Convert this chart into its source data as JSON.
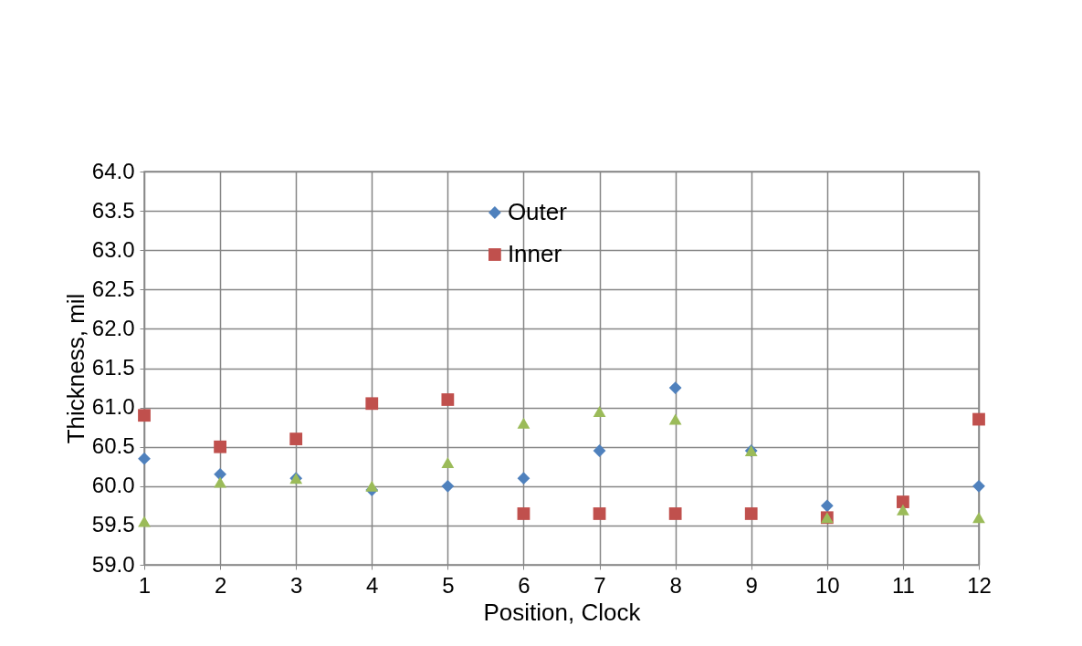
{
  "chart_data": {
    "type": "scatter",
    "xlabel": "Position, Clock",
    "ylabel": "Thickness, mil",
    "x": [
      1,
      2,
      3,
      4,
      5,
      6,
      7,
      8,
      9,
      10,
      11,
      12
    ],
    "series": [
      {
        "name": "Outer",
        "color": "#4f81bd",
        "marker": "diamond",
        "values": [
          60.35,
          60.15,
          60.1,
          59.95,
          60.0,
          60.1,
          60.45,
          61.25,
          60.45,
          59.75,
          null,
          60.0
        ]
      },
      {
        "name": "Inner",
        "color": "#c0504d",
        "marker": "square",
        "values": [
          60.9,
          60.5,
          60.6,
          61.05,
          61.1,
          59.65,
          59.65,
          59.65,
          59.65,
          59.6,
          59.8,
          60.85
        ]
      },
      {
        "color": "#9bbb59",
        "marker": "triangle",
        "values": [
          59.55,
          60.05,
          60.1,
          60.0,
          60.3,
          60.8,
          60.95,
          60.85,
          60.45,
          59.6,
          59.7,
          59.6
        ]
      }
    ],
    "xlim": [
      1,
      12
    ],
    "xticks": [
      1,
      2,
      3,
      4,
      5,
      6,
      7,
      8,
      9,
      10,
      11,
      12
    ],
    "ylim": [
      59.0,
      64.0
    ],
    "yticks": [
      {
        "value": 59,
        "label": "59.0"
      },
      {
        "value": 59.5,
        "label": "59.5"
      },
      {
        "value": 60,
        "label": "60.0"
      },
      {
        "value": 60.5,
        "label": "60.5"
      },
      {
        "value": 61,
        "label": "61.0"
      },
      {
        "value": 61.5,
        "label": "61.5"
      },
      {
        "value": 62,
        "label": "62.0"
      },
      {
        "value": 62.5,
        "label": "62.5"
      },
      {
        "value": 63,
        "label": "63.0"
      },
      {
        "value": 63.5,
        "label": "63.5"
      },
      {
        "value": 64,
        "label": "64.0"
      }
    ],
    "grid": true,
    "legend": "top"
  }
}
